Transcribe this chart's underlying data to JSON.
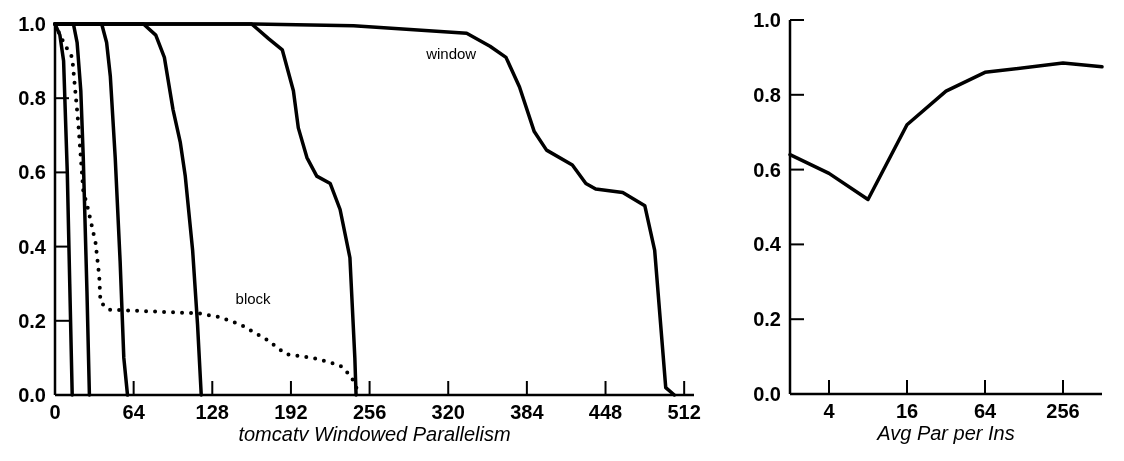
{
  "chart_data": [
    {
      "type": "line",
      "xlabel": "tomcatv Windowed Parallelism",
      "xlim": [
        0,
        520
      ],
      "ylim": [
        0,
        1
      ],
      "xticks": [
        0,
        64,
        128,
        192,
        256,
        320,
        384,
        448,
        512
      ],
      "yticks": [
        {
          "value": 0,
          "label": "0.0"
        },
        {
          "value": 0.2,
          "label": "0.2"
        },
        {
          "value": 0.4,
          "label": "0.4"
        },
        {
          "value": 0.6,
          "label": "0.6"
        },
        {
          "value": 0.8,
          "label": "0.8"
        },
        {
          "value": 1,
          "label": "1.0"
        }
      ],
      "line_style": "solid",
      "marker": "none",
      "grid": false,
      "annotations": [
        "window",
        "block"
      ],
      "series": [
        {
          "color": "#000000",
          "x": [
            0,
            4,
            7,
            10,
            12,
            14
          ],
          "values": [
            1,
            0.97,
            0.9,
            0.6,
            0.3,
            0
          ]
        },
        {
          "color": "#000000",
          "x": [
            0,
            15,
            18,
            21,
            23,
            26,
            28
          ],
          "values": [
            1,
            1,
            0.95,
            0.82,
            0.64,
            0.28,
            0
          ]
        },
        {
          "color": "#000000",
          "x": [
            0,
            38,
            42,
            45,
            49,
            53,
            56,
            59
          ],
          "values": [
            1,
            1,
            0.95,
            0.86,
            0.64,
            0.36,
            0.1,
            0
          ]
        },
        {
          "color": "#000000",
          "x": [
            0,
            72,
            82,
            89,
            96,
            102,
            106,
            112,
            116,
            119
          ],
          "values": [
            1,
            1,
            0.97,
            0.91,
            0.77,
            0.68,
            0.59,
            0.39,
            0.19,
            0
          ]
        },
        {
          "color": "#000000",
          "x": [
            0,
            160,
            174,
            185,
            194,
            198,
            205,
            213,
            224,
            232,
            240,
            244,
            245
          ],
          "values": [
            1,
            1,
            0.96,
            0.93,
            0.82,
            0.72,
            0.64,
            0.59,
            0.57,
            0.5,
            0.37,
            0.1,
            0
          ]
        },
        {
          "color": "#000000",
          "x": [
            0,
            160,
            243,
            335,
            354,
            367,
            378,
            390,
            400,
            421,
            432,
            440,
            462,
            480,
            488,
            497,
            504
          ],
          "values": [
            1,
            1,
            0.995,
            0.975,
            0.94,
            0.91,
            0.83,
            0.71,
            0.66,
            0.62,
            0.57,
            0.555,
            0.546,
            0.51,
            0.39,
            0.02,
            0
          ]
        },
        {
          "color": "#000000",
          "line_style": "dotted",
          "x": [
            0,
            7,
            14,
            19,
            23,
            27,
            33,
            36,
            37,
            44,
            117,
            134,
            151,
            172,
            188,
            210,
            232,
            241,
            248
          ],
          "values": [
            1,
            0.95,
            0.91,
            0.73,
            0.55,
            0.5,
            0.41,
            0.32,
            0.25,
            0.23,
            0.22,
            0.21,
            0.19,
            0.15,
            0.11,
            0.1,
            0.08,
            0.05,
            0
          ]
        }
      ]
    },
    {
      "type": "line",
      "xlabel": "Avg Par per Ins",
      "log": "x",
      "xlim": [
        2,
        512
      ],
      "ylim": [
        0,
        1
      ],
      "xticks": [
        4,
        16,
        64,
        256
      ],
      "yticks": [
        {
          "value": 0,
          "label": "0.0"
        },
        {
          "value": 0.2,
          "label": "0.2"
        },
        {
          "value": 0.4,
          "label": "0.4"
        },
        {
          "value": 0.6,
          "label": "0.6"
        },
        {
          "value": 0.8,
          "label": "0.8"
        },
        {
          "value": 1,
          "label": "1.0"
        }
      ],
      "line_style": "solid",
      "marker": "none",
      "grid": false,
      "series": [
        {
          "color": "#000000",
          "x": [
            2,
            4,
            8,
            16,
            32,
            64,
            256,
            512
          ],
          "values": [
            0.64,
            0.59,
            0.52,
            0.72,
            0.81,
            0.86,
            0.885,
            0.875
          ]
        }
      ]
    }
  ]
}
